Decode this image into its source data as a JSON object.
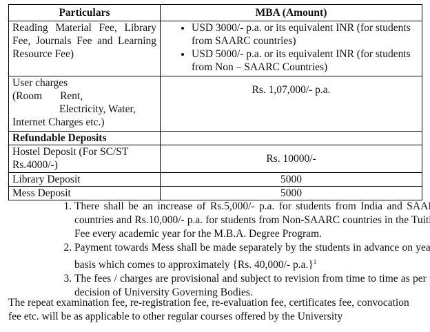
{
  "table": {
    "headers": [
      "Particulars",
      "MBA (Amount)"
    ],
    "reading": {
      "label": "Reading Material Fee, Library Fee, Journals Fee and Learning Resource Fee)",
      "bullets": [
        "USD 3000/- p.a. or its equivalent INR (for students from SAARC countries)",
        "USD 5000/- p.a. or its equivalent INR (for students from Non – SAARC Countries)"
      ]
    },
    "user": {
      "l1": "User charges",
      "l2a": "(Room",
      "l2b": "Rent,",
      "l3": "Electricity, Water,",
      "l4": "Internet Charges etc.)",
      "amount": "Rs. 1,07,000/- p.a."
    },
    "refundable": "Refundable Deposits",
    "hostel": {
      "label": "Hostel Deposit (For SC/ST Rs.4000/-)",
      "amount": "Rs. 10000/-"
    },
    "library": {
      "label": "Library Deposit",
      "amount": "5000"
    },
    "mess": {
      "label": "Mess Deposit",
      "amount": "5000"
    }
  },
  "notes": [
    "There shall be an increase of Rs.5,000/- p.a. for students from India and SAARC countries and Rs.10,000/- p.a. for students from Non-SAARC countries in the Tuition Fee every academic year for the M.B.A. Degree Program.",
    "Payment towards Mess shall be made separately by the students in advance on yearly basis which comes to approximately {Rs. 40,000/- p.a.}",
    "The fees / charges are provisional and subject to revision from time to time  as per the decision of University Governing Bodies."
  ],
  "note2_sup": "1",
  "footer": "The repeat examination fee, re-registration fee, re-evaluation fee, certificates fee, convocation fee etc. will be as applicable to other regular courses offered by the University"
}
